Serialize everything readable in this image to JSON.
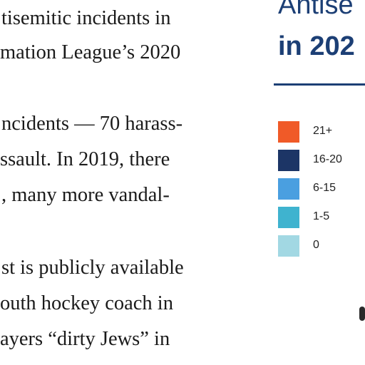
{
  "article": {
    "lines": [
      "tisemitic incidents in",
      "mation League’s 2020",
      "",
      "ncidents — 70 harass-",
      "ssault. In 2019, there",
      ", many more vandal-",
      "",
      "st is publicly available",
      "outh hockey coach in",
      "ayers “dirty Jews” in"
    ]
  },
  "map_panel": {
    "title_line1": "Antise",
    "title_line2": "in 202",
    "title_color": "#1c3f75",
    "legend": [
      {
        "label": "21+",
        "color": "#f05a28"
      },
      {
        "label": "16-20",
        "color": "#1c3566"
      },
      {
        "label": "6-15",
        "color": "#4a9fe0"
      },
      {
        "label": "1-5",
        "color": "#3fb3cf"
      },
      {
        "label": "0",
        "color": "#a2d8e3"
      }
    ]
  }
}
